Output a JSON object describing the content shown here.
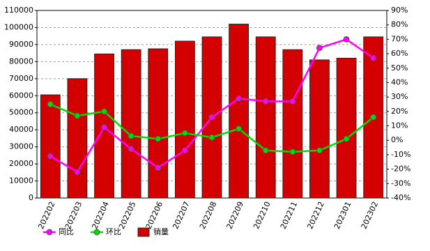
{
  "chart_data": {
    "type": "bar",
    "categories": [
      "202202",
      "202203",
      "202204",
      "202205",
      "202206",
      "202207",
      "202208",
      "202209",
      "202210",
      "202211",
      "202212",
      "202301",
      "202302"
    ],
    "series": [
      {
        "name": "同比",
        "type": "line",
        "axis": "y2",
        "color": "#ff00ff",
        "values": [
          -11,
          -22,
          9,
          -6,
          -19,
          -7,
          16,
          29,
          27,
          27,
          64,
          70,
          57
        ]
      },
      {
        "name": "环比",
        "type": "line",
        "axis": "y2",
        "color": "#00dd00",
        "values": [
          25,
          17,
          20,
          3,
          1,
          5,
          2,
          8,
          -7,
          -8,
          -7,
          1,
          16
        ]
      },
      {
        "name": "销量",
        "type": "bar",
        "color": "#d40000",
        "values": [
          60500,
          70000,
          84500,
          87000,
          87500,
          92000,
          94500,
          102000,
          94500,
          87000,
          81000,
          82000,
          94500
        ]
      }
    ],
    "ylim": [
      0,
      110000
    ],
    "yticks": [
      0,
      10000,
      20000,
      30000,
      40000,
      50000,
      60000,
      70000,
      80000,
      90000,
      100000,
      110000
    ],
    "y2lim": [
      -40,
      90
    ],
    "y2ticks": [
      {
        "value": -40,
        "label": "-40%"
      },
      {
        "value": -30,
        "label": "-30%"
      },
      {
        "value": -20,
        "label": "-20%"
      },
      {
        "value": -10,
        "label": "-10%"
      },
      {
        "value": 0,
        "label": "0%"
      },
      {
        "value": 10,
        "label": "10%"
      },
      {
        "value": 20,
        "label": "20%"
      },
      {
        "value": 30,
        "label": "30%"
      },
      {
        "value": 40,
        "label": "40%"
      },
      {
        "value": 50,
        "label": "50%"
      },
      {
        "value": 60,
        "label": "60%"
      },
      {
        "value": 70,
        "label": "70%"
      },
      {
        "value": 80,
        "label": "80%"
      },
      {
        "value": 90,
        "label": "90%"
      }
    ],
    "grid": true
  }
}
